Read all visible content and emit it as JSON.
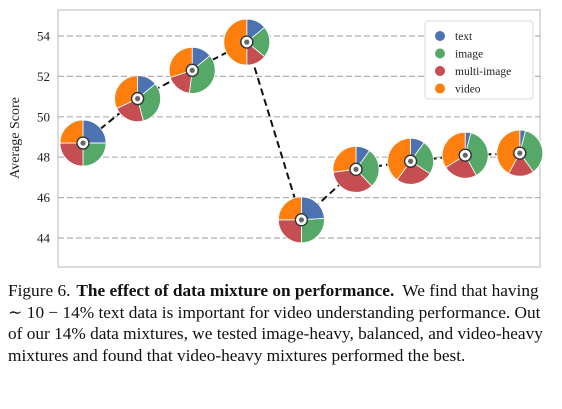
{
  "chart_data": {
    "type": "scatter",
    "ylabel": "Average Score",
    "ylim": [
      43,
      55
    ],
    "yticks": [
      44,
      46,
      48,
      50,
      52,
      54
    ],
    "grid": "horizontal dashed",
    "connector": "dashed line",
    "legend_position": "top-right",
    "legend": [
      {
        "name": "text",
        "color": "#4C72B0"
      },
      {
        "name": "image",
        "color": "#55A868"
      },
      {
        "name": "multi-image",
        "color": "#C44E52"
      },
      {
        "name": "video",
        "color": "#FF7F0E"
      }
    ],
    "points": [
      {
        "index": 1,
        "y": 48.7,
        "mix": [
          25,
          25,
          25,
          25
        ]
      },
      {
        "index": 2,
        "y": 50.9,
        "mix": [
          14,
          32,
          22,
          32
        ]
      },
      {
        "index": 3,
        "y": 52.3,
        "mix": [
          14,
          38,
          18,
          30
        ]
      },
      {
        "index": 4,
        "y": 53.7,
        "mix": [
          14,
          22,
          14,
          50
        ]
      },
      {
        "index": 5,
        "y": 44.9,
        "mix": [
          24,
          26,
          25,
          25
        ]
      },
      {
        "index": 6,
        "y": 47.4,
        "mix": [
          10,
          28,
          35,
          27
        ]
      },
      {
        "index": 7,
        "y": 47.8,
        "mix": [
          10,
          24,
          26,
          40
        ]
      },
      {
        "index": 8,
        "y": 48.1,
        "mix": [
          4,
          38,
          24,
          34
        ]
      },
      {
        "index": 9,
        "y": 48.2,
        "mix": [
          4,
          36,
          18,
          42
        ]
      }
    ]
  },
  "caption": {
    "label": "Figure 6.",
    "title": "The effect of data mixture on performance.",
    "text": "We find that having ∼ 10 − 14% text data is important for video understanding performance. Out of our 14% data mixtures, we tested image-heavy, balanced, and video-heavy mixtures and found that video-heavy mixtures performed the best."
  }
}
